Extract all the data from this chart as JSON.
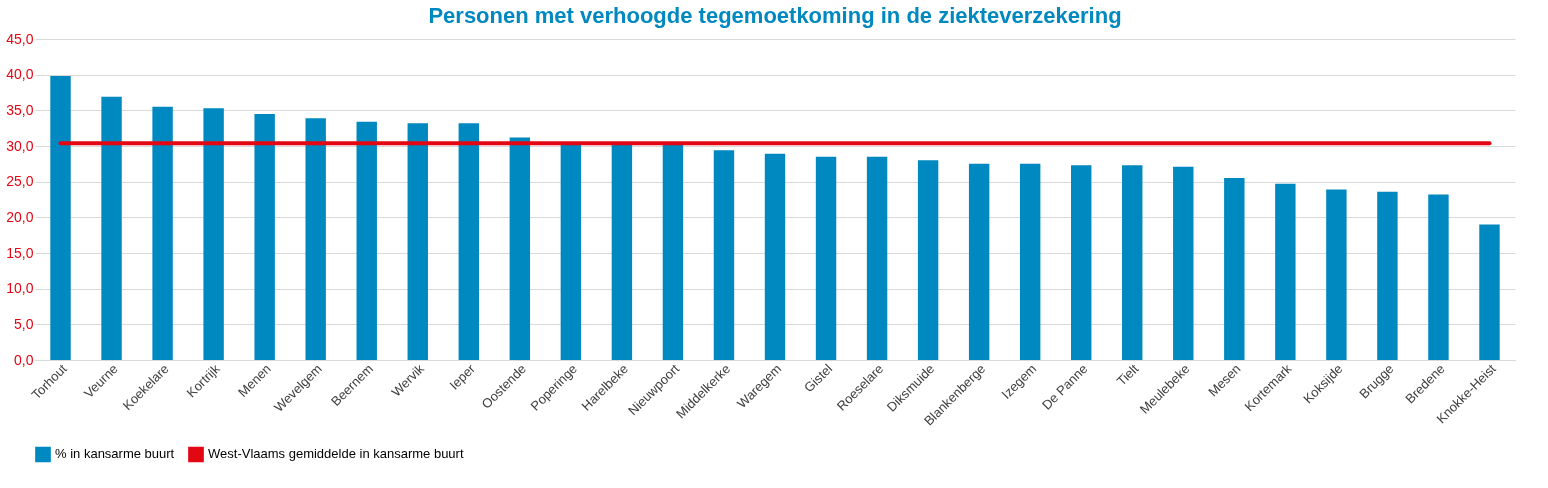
{
  "chart_data": {
    "type": "bar",
    "title": "Personen met verhoogde tegemoetkoming in de ziekteverzekering",
    "categories": [
      "Torhout",
      "Veurne",
      "Koekelare",
      "Kortrijk",
      "Menen",
      "Wevelgem",
      "Beernem",
      "Wervik",
      "Ieper",
      "Oostende",
      "Poperinge",
      "Harelbeke",
      "Nieuwpoort",
      "Middelkerke",
      "Waregem",
      "Gistel",
      "Roeselare",
      "Diksmuide",
      "Blankenberge",
      "Izegem",
      "De Panne",
      "Tielt",
      "Meulebeke",
      "Mesen",
      "Kortemark",
      "Koksijde",
      "Brugge",
      "Bredene",
      "Knokke-Heist"
    ],
    "series": [
      {
        "name": "% in kansarme buurt",
        "color": "#0088c0",
        "values": [
          39.8,
          36.9,
          35.5,
          35.3,
          34.5,
          33.9,
          33.4,
          33.2,
          33.2,
          31.2,
          30.5,
          30.4,
          30.3,
          29.4,
          28.9,
          28.5,
          28.5,
          28.0,
          27.5,
          27.5,
          27.3,
          27.3,
          27.1,
          25.5,
          24.7,
          23.9,
          23.6,
          23.2,
          19.0
        ]
      },
      {
        "name": "West-Vlaams gemiddelde in kansarme buurt",
        "color": "#e30613",
        "type": "line",
        "values": [
          30.4,
          30.4,
          30.4,
          30.4,
          30.4,
          30.4,
          30.4,
          30.4,
          30.4,
          30.4,
          30.4,
          30.4,
          30.4,
          30.4,
          30.4,
          30.4,
          30.4,
          30.4,
          30.4,
          30.4,
          30.4,
          30.4,
          30.4,
          30.4,
          30.4,
          30.4,
          30.4,
          30.4,
          30.4
        ]
      }
    ],
    "ylim": [
      0,
      45
    ],
    "yticks": [
      {
        "value": 0,
        "label": "0,0"
      },
      {
        "value": 5,
        "label": "5,0"
      },
      {
        "value": 10,
        "label": "10,0"
      },
      {
        "value": 15,
        "label": "15,0"
      },
      {
        "value": 20,
        "label": "20,0"
      },
      {
        "value": 25,
        "label": "25,0"
      },
      {
        "value": 30,
        "label": "30,0"
      },
      {
        "value": 35,
        "label": "35,0"
      },
      {
        "value": 40,
        "label": "40,0"
      },
      {
        "value": 45,
        "label": "45,0"
      }
    ],
    "grid": "y",
    "legend": "bottom"
  }
}
